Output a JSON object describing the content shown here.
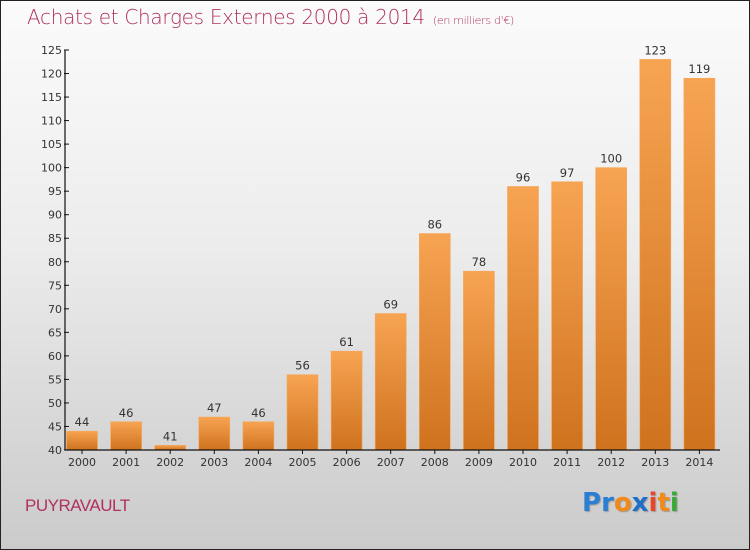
{
  "header": {
    "title": "Achats et Charges Externes 2000 à 2014",
    "subtitle": "(en milliers d'€)"
  },
  "footer": {
    "city": "PUYRAVAULT",
    "logo": {
      "letters": [
        {
          "ch": "P",
          "color": "#2a7fd4"
        },
        {
          "ch": "r",
          "color": "#2a7fd4"
        },
        {
          "ch": "o",
          "color": "#f28a1a"
        },
        {
          "ch": "x",
          "color": "#1f6fc8"
        },
        {
          "ch": "i",
          "color": "#e8452a"
        },
        {
          "ch": "t",
          "color": "#f28a1a"
        },
        {
          "ch": "i",
          "color": "#3aa935"
        }
      ]
    }
  },
  "colors": {
    "bar_top": "#f7a452",
    "bar_bottom": "#cf721e",
    "title": "#b03060"
  },
  "chart_data": {
    "type": "bar",
    "title": "Achats et Charges Externes 2000 à 2014",
    "subtitle": "(en milliers d'€)",
    "xlabel": "",
    "ylabel": "",
    "categories": [
      "2000",
      "2001",
      "2002",
      "2003",
      "2004",
      "2005",
      "2006",
      "2007",
      "2008",
      "2009",
      "2010",
      "2011",
      "2012",
      "2013",
      "2014"
    ],
    "values": [
      44,
      46,
      41,
      47,
      46,
      56,
      61,
      69,
      86,
      78,
      96,
      97,
      100,
      123,
      119
    ],
    "ylim": [
      40,
      125
    ],
    "yticks": [
      40,
      45,
      50,
      55,
      60,
      65,
      70,
      75,
      80,
      85,
      90,
      95,
      100,
      105,
      110,
      115,
      120,
      125
    ],
    "grid": false,
    "legend": "none"
  }
}
